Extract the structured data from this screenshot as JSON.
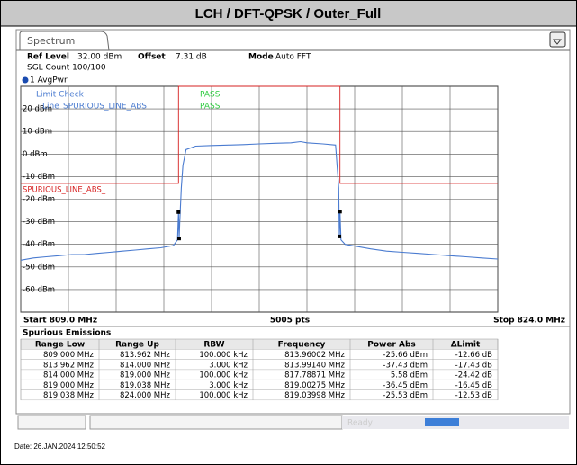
{
  "header": {
    "title": "LCH / DFT-QPSK / Outer_Full"
  },
  "tab": "Spectrum",
  "settings": {
    "ref_level_label": "Ref Level",
    "ref_level": "32.00 dBm",
    "offset_label": "Offset",
    "offset": "7.31 dB",
    "mode_label": "Mode",
    "mode": "Auto FFT",
    "sgl_count": "SGL Count 100/100"
  },
  "trace_label": "1 AvgPwr",
  "limit_check": {
    "label": "Limit Check",
    "result": "PASS",
    "line_label": "Line",
    "line_name": "SPURIOUS_LINE_ABS",
    "line_result": "PASS"
  },
  "chart_data": {
    "type": "line",
    "xlim": [
      809,
      824
    ],
    "ylim": [
      -70,
      30
    ],
    "xticks": [
      809,
      810.5,
      812,
      813.5,
      815,
      816.5,
      818,
      819.5,
      821,
      822.5,
      824
    ],
    "yticks": [
      {
        "value": 20,
        "label": "20 dBm"
      },
      {
        "value": 10,
        "label": "10 dBm"
      },
      {
        "value": 0,
        "label": "0 dBm"
      },
      {
        "value": -10,
        "label": "-10 dBm"
      },
      {
        "value": -20,
        "label": "-20 dBm"
      },
      {
        "value": -30,
        "label": "-30 dBm"
      },
      {
        "value": -40,
        "label": "-40 dBm"
      },
      {
        "value": -50,
        "label": "-50 dBm"
      },
      {
        "value": -60,
        "label": "-60 dBm"
      }
    ],
    "grid": true,
    "limit_line_label": "SPURIOUS_LINE_ABS_",
    "series": [
      {
        "name": "1 AvgPwr",
        "color": "#4a7bd0",
        "x": [
          809,
          809.4,
          809.8,
          810.2,
          810.6,
          811,
          811.4,
          811.8,
          812.2,
          812.6,
          813,
          813.4,
          813.8,
          813.93,
          813.96,
          813.98,
          814.0,
          814.05,
          814.1,
          814.2,
          814.5,
          815,
          815.5,
          816,
          816.5,
          817,
          817.5,
          817.8,
          818,
          818.5,
          818.9,
          819.0,
          819.02,
          819.04,
          819.07,
          819.2,
          819.6,
          820,
          820.5,
          821,
          821.5,
          822,
          822.5,
          823,
          823.5,
          824
        ],
        "values": [
          -47,
          -46,
          -45.5,
          -45,
          -44.5,
          -44.5,
          -44,
          -43.5,
          -43,
          -42.5,
          -42,
          -41.5,
          -40.5,
          -38,
          -25.7,
          -37.4,
          -30,
          -15,
          -5,
          2,
          3.5,
          3.8,
          4,
          4.2,
          4.5,
          4.8,
          5,
          5.5,
          5,
          4.5,
          4,
          -15,
          -36.5,
          -25.5,
          -38,
          -40,
          -41,
          -42,
          -43,
          -43.5,
          -44,
          -44.5,
          -45,
          -45.5,
          -46,
          -46.5
        ]
      },
      {
        "name": "SPURIOUS_LINE_ABS",
        "color": "#d62020",
        "x": [
          809,
          813.96,
          813.96,
          819.04,
          819.04,
          824
        ],
        "values": [
          -13,
          -13,
          30,
          30,
          -13,
          -13
        ]
      }
    ]
  },
  "footer": {
    "start": "Start 809.0 MHz",
    "points": "5005 pts",
    "stop": "Stop 824.0 MHz"
  },
  "table": {
    "title": "Spurious Emissions",
    "columns": [
      "Range Low",
      "Range Up",
      "RBW",
      "Frequency",
      "Power Abs",
      "ΔLimit"
    ],
    "rows": [
      [
        "809.000 MHz",
        "813.962 MHz",
        "100.000 kHz",
        "813.96002 MHz",
        "-25.66 dBm",
        "-12.66 dB"
      ],
      [
        "813.962 MHz",
        "814.000 MHz",
        "3.000 kHz",
        "813.99140 MHz",
        "-37.43 dBm",
        "-17.43 dB"
      ],
      [
        "814.000 MHz",
        "819.000 MHz",
        "100.000 kHz",
        "817.78871 MHz",
        "5.58 dBm",
        "-24.42 dB"
      ],
      [
        "819.000 MHz",
        "819.038 MHz",
        "3.000 kHz",
        "819.00275 MHz",
        "-36.45 dBm",
        "-16.45 dB"
      ],
      [
        "819.038 MHz",
        "824.000 MHz",
        "100.000 kHz",
        "819.03998 MHz",
        "-25.53 dBm",
        "-12.53 dB"
      ]
    ]
  },
  "status": "Ready",
  "date": "Date: 26.JAN.2024  12:50:52"
}
